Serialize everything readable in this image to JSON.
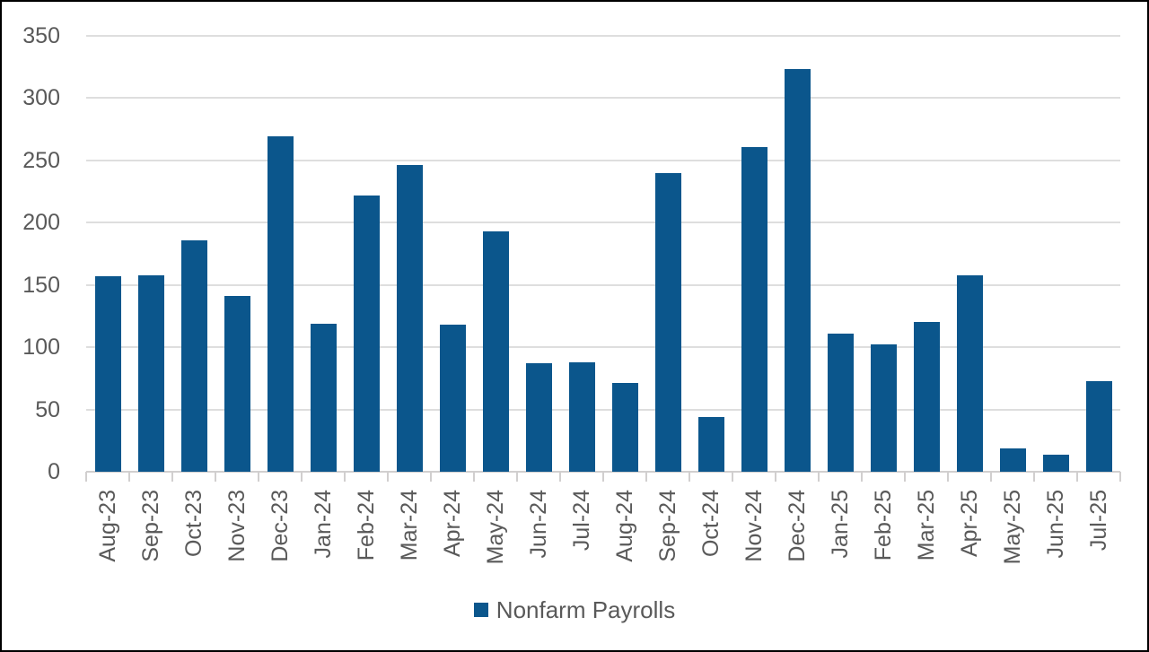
{
  "chart_data": {
    "type": "bar",
    "title": "",
    "categories": [
      "Aug-23",
      "Sep-23",
      "Oct-23",
      "Nov-23",
      "Dec-23",
      "Jan-24",
      "Feb-24",
      "Mar-24",
      "Apr-24",
      "May-24",
      "Jun-24",
      "Jul-24",
      "Aug-24",
      "Sep-24",
      "Oct-24",
      "Nov-24",
      "Dec-24",
      "Jan-25",
      "Feb-25",
      "Mar-25",
      "Apr-25",
      "May-25",
      "Jun-25",
      "Jul-25"
    ],
    "series": [
      {
        "name": "Nonfarm Payrolls",
        "values": [
          157,
          158,
          186,
          141,
          269,
          119,
          222,
          246,
          118,
          193,
          87,
          88,
          71,
          240,
          44,
          261,
          323,
          111,
          102,
          120,
          158,
          19,
          14,
          73
        ]
      }
    ],
    "xlabel": "",
    "ylabel": "",
    "ylim": [
      0,
      350
    ],
    "y_ticks": [
      0,
      50,
      100,
      150,
      200,
      250,
      300,
      350
    ],
    "grid": true,
    "legend_position": "bottom",
    "x_tick_rotation_degrees": 90
  },
  "colors": {
    "bar": "#0B568C",
    "axis_text": "#595959",
    "gridline": "#DEDEDE",
    "axis_line": "#D1CFCF",
    "background": "#FFFFFF",
    "border": "#000000"
  }
}
